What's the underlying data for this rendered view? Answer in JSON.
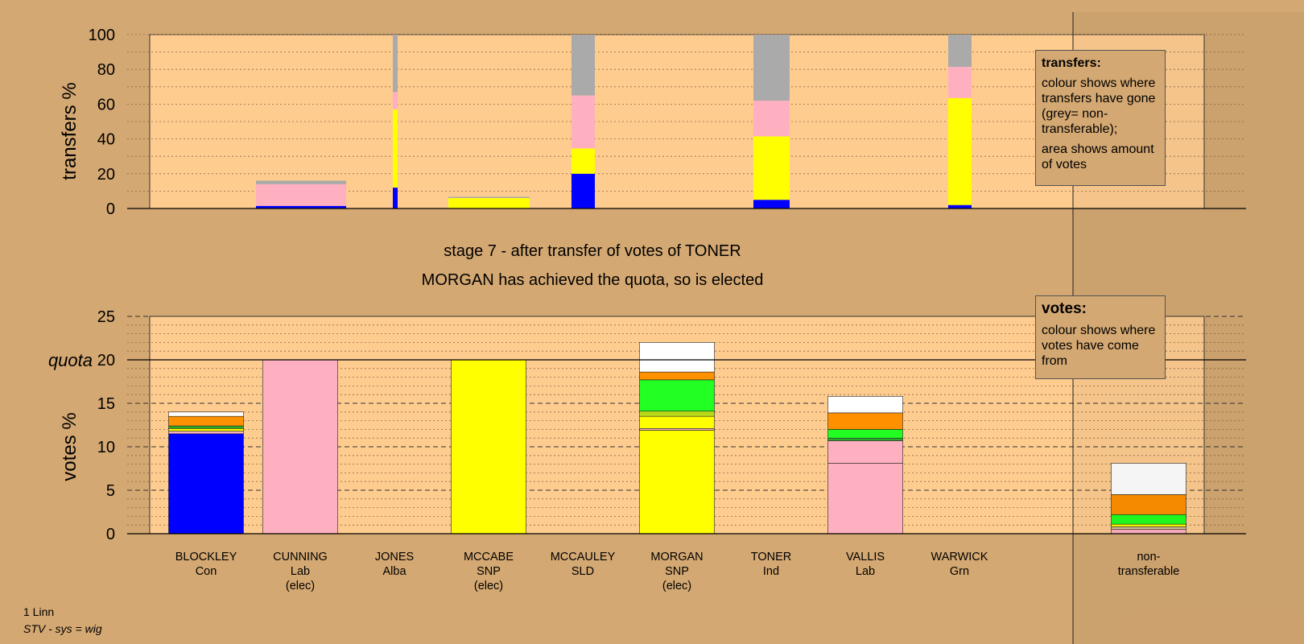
{
  "chart_data": [
    {
      "type": "bar",
      "stacked": true,
      "ylabel": "transfers %",
      "ylim": [
        0,
        100
      ],
      "yticks": [
        0,
        20,
        40,
        60,
        80,
        100
      ],
      "grid": "dotted",
      "bars": [
        {
          "name": "CUNNING",
          "segments": [
            {
              "color": "#0000ff",
              "value": 1.5
            },
            {
              "color": "#ffb0c0",
              "value": 12.5
            },
            {
              "color": "#aaaaaa",
              "value": 2
            }
          ]
        },
        {
          "name": "JONES",
          "segments": [
            {
              "color": "#0000ff",
              "value": 12
            },
            {
              "color": "#ffff00",
              "value": 45
            },
            {
              "color": "#ffb0c0",
              "value": 10
            },
            {
              "color": "#aaaaaa",
              "value": 33
            }
          ]
        },
        {
          "name": "MCCABE",
          "segments": [
            {
              "color": "#ffff00",
              "value": 6
            },
            {
              "color": "#aaaaaa",
              "value": 0.7
            }
          ]
        },
        {
          "name": "MCCAULEY",
          "segments": [
            {
              "color": "#0000ff",
              "value": 20
            },
            {
              "color": "#ffff00",
              "value": 14.5
            },
            {
              "color": "#ffb0c0",
              "value": 30.5
            },
            {
              "color": "#aaaaaa",
              "value": 35
            }
          ]
        },
        {
          "name": "TONER",
          "segments": [
            {
              "color": "#0000ff",
              "value": 5
            },
            {
              "color": "#ffff00",
              "value": 36.5
            },
            {
              "color": "#ffb0c0",
              "value": 20.5
            },
            {
              "color": "#aaaaaa",
              "value": 38
            }
          ]
        },
        {
          "name": "WARWICK",
          "segments": [
            {
              "color": "#0000ff",
              "value": 2
            },
            {
              "color": "#ffff00",
              "value": 61.5
            },
            {
              "color": "#ffb0c0",
              "value": 18
            },
            {
              "color": "#aaaaaa",
              "value": 18.5
            }
          ]
        }
      ]
    },
    {
      "type": "bar",
      "stacked": true,
      "ylabel": "votes %",
      "ylim": [
        0,
        25
      ],
      "yticks": [
        0,
        5,
        10,
        15,
        20,
        25
      ],
      "quota": 20,
      "quota_label": "quota",
      "grid": "dotted",
      "candidates": [
        {
          "name": "BLOCKLEY",
          "party": "Con",
          "elec": "",
          "segments": [
            {
              "color": "#0000ff",
              "value": 11.5
            },
            {
              "color": "#ffb0c0",
              "value": 0.3
            },
            {
              "color": "#ffff00",
              "value": 0.3
            },
            {
              "color": "#2aaa2a",
              "value": 0.3
            },
            {
              "color": "#ff9000",
              "value": 1.1
            },
            {
              "color": "#ffffff",
              "value": 0.5
            }
          ]
        },
        {
          "name": "CUNNING",
          "party": "Lab",
          "elec": "(elec)",
          "segments": [
            {
              "color": "#ffb0c0",
              "value": 20
            }
          ]
        },
        {
          "name": "JONES",
          "party": "Alba",
          "elec": "",
          "segments": []
        },
        {
          "name": "MCCABE",
          "party": "SNP",
          "elec": "(elec)",
          "segments": [
            {
              "color": "#ffff00",
              "value": 20
            }
          ]
        },
        {
          "name": "MCCAULEY",
          "party": "SLD",
          "elec": "",
          "segments": []
        },
        {
          "name": "MORGAN",
          "party": "SNP",
          "elec": "(elec)",
          "segments": [
            {
              "color": "#ffff00",
              "value": 11.9
            },
            {
              "color": "#ffb0c0",
              "value": 0.2
            },
            {
              "color": "#ffff00",
              "value": 1.4
            },
            {
              "color": "#b8d818",
              "value": 0.6
            },
            {
              "color": "#22ff22",
              "value": 3.6
            },
            {
              "color": "#ff9000",
              "value": 0.9
            },
            {
              "color": "#ffffff",
              "value": 3.4
            }
          ]
        },
        {
          "name": "TONER",
          "party": "Ind",
          "elec": "",
          "segments": []
        },
        {
          "name": "VALLIS",
          "party": "Lab",
          "elec": "",
          "segments": [
            {
              "color": "#ffb0c0",
              "value": 8.1
            },
            {
              "color": "#ffb0c0",
              "value": 2.6
            },
            {
              "color": "#2aaa2a",
              "value": 0.3
            },
            {
              "color": "#22ff22",
              "value": 1.0
            },
            {
              "color": "#ff9000",
              "value": 1.9
            },
            {
              "color": "#ffffff",
              "value": 1.9
            }
          ]
        },
        {
          "name": "WARWICK",
          "party": "Grn",
          "elec": "",
          "segments": []
        }
      ],
      "nontransferable": {
        "name": "non-",
        "party": "transferable",
        "segments": [
          {
            "color": "#ffb0c0",
            "value": 0.5
          },
          {
            "color": "#d8c8a0",
            "value": 0.3
          },
          {
            "color": "#ffff00",
            "value": 0.3
          },
          {
            "color": "#22ff22",
            "value": 1.1
          },
          {
            "color": "#ff9000",
            "value": 2.3
          },
          {
            "color": "#ffffff",
            "value": 3.6
          }
        ]
      }
    }
  ],
  "stage_line_1": "stage 7 - after transfer of votes of TONER",
  "stage_line_2": "MORGAN has achieved the quota, so is elected",
  "transfers_legend": {
    "title": "transfers:",
    "line_1": "colour shows where transfers have gone (grey= non-transferable);",
    "line_2": "area shows amount of votes"
  },
  "votes_legend": {
    "title": "votes:",
    "line_1": "colour shows where votes have come from"
  },
  "footer": {
    "line_1": "1 Linn",
    "line_2": "STV - sys = wig"
  }
}
